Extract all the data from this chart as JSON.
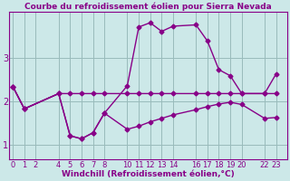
{
  "title": "Courbe du refroidissement éolien pour Sierra Nevada",
  "xlabel": "Windchill (Refroidissement éolien,°C)",
  "bg_color": "#cce8e8",
  "line_color": "#880088",
  "grid_color": "#99bbbb",
  "xticks": [
    0,
    1,
    2,
    4,
    5,
    6,
    7,
    8,
    10,
    11,
    12,
    13,
    14,
    16,
    17,
    18,
    19,
    20,
    22,
    23
  ],
  "yticks": [
    1,
    2,
    3
  ],
  "ylim": [
    0.65,
    4.05
  ],
  "xlim": [
    -0.3,
    24.0
  ],
  "line1_x": [
    0,
    1,
    4,
    5,
    6,
    7,
    8,
    10,
    11,
    12,
    13,
    14,
    16,
    17,
    18,
    19,
    20,
    22,
    23
  ],
  "line1_y": [
    2.33,
    1.82,
    2.17,
    2.17,
    2.17,
    2.17,
    2.17,
    2.17,
    2.17,
    2.17,
    2.17,
    2.17,
    2.17,
    2.17,
    2.17,
    2.17,
    2.17,
    2.17,
    2.17
  ],
  "line2_x": [
    0,
    1,
    4,
    5,
    6,
    7,
    8,
    10,
    11,
    12,
    13,
    14,
    16,
    17,
    18,
    19,
    20,
    22,
    23
  ],
  "line2_y": [
    2.33,
    1.82,
    2.17,
    1.2,
    1.13,
    1.27,
    1.72,
    1.35,
    1.42,
    1.52,
    1.6,
    1.68,
    1.8,
    1.87,
    1.93,
    1.97,
    1.92,
    1.6,
    1.62
  ],
  "line3_x": [
    0,
    1,
    4,
    5,
    6,
    7,
    8,
    10,
    11,
    12,
    13,
    14,
    16,
    17,
    18,
    19,
    20,
    22,
    23
  ],
  "line3_y": [
    2.33,
    1.82,
    2.17,
    1.2,
    1.13,
    1.27,
    1.72,
    2.35,
    3.7,
    3.8,
    3.6,
    3.72,
    3.75,
    3.38,
    2.72,
    2.58,
    2.17,
    2.17,
    2.62
  ],
  "marker": "D",
  "markersize": 2.5,
  "linewidth": 1.0,
  "title_fontsize": 6.5,
  "axis_fontsize": 6.5,
  "tick_fontsize": 6
}
